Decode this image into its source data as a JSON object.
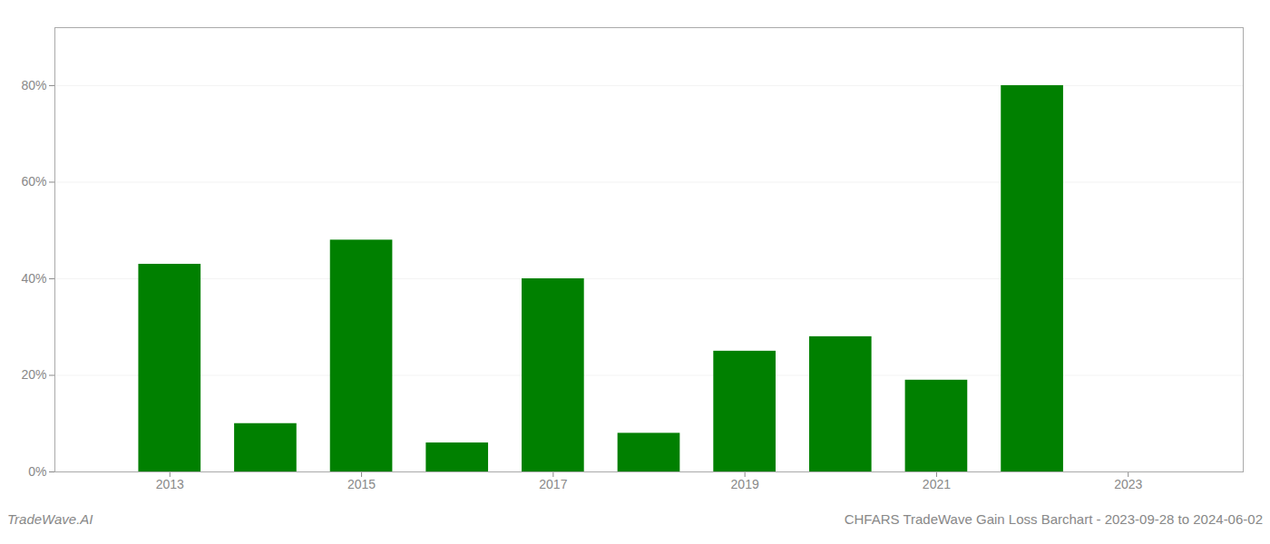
{
  "chart_data": {
    "type": "bar",
    "title": "CHFARS TradeWave Gain Loss Barchart - 2023-09-28 to 2024-06-02",
    "annotations": [
      "TradeWave.AI"
    ],
    "x": [
      2013,
      2014,
      2015,
      2016,
      2017,
      2018,
      2019,
      2020,
      2021,
      2022
    ],
    "values": [
      0.43,
      0.1,
      0.48,
      0.06,
      0.4,
      0.08,
      0.25,
      0.28,
      0.19,
      0.8
    ],
    "color": "#008000",
    "xlim": [
      2011.8,
      2024.2
    ],
    "xticks": [
      2013,
      2015,
      2017,
      2019,
      2021,
      2023
    ],
    "ylim": [
      0,
      0.92
    ],
    "yticks": [
      {
        "value": 0.0,
        "label": "0%"
      },
      {
        "value": 0.2,
        "label": "20%"
      },
      {
        "value": 0.4,
        "label": "40%"
      },
      {
        "value": 0.6,
        "label": "60%"
      },
      {
        "value": 0.8,
        "label": "80%"
      }
    ],
    "grid": true
  }
}
